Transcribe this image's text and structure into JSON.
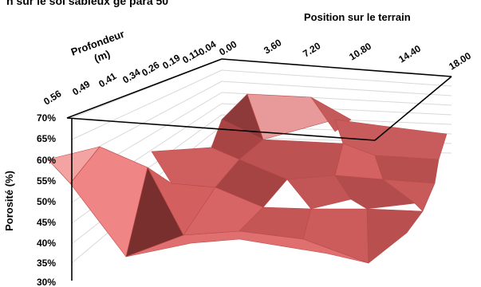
{
  "title_partial": "n sur le sol sableux ge para 50",
  "chart_data": {
    "type": "surface",
    "zlabel": "Porosité (%)",
    "xlabel": "Position sur le terrain",
    "ylabel": "Profondeur\n(m)",
    "z_ticks": [
      "70%",
      "65%",
      "60%",
      "55%",
      "50%",
      "45%",
      "40%",
      "35%",
      "30%"
    ],
    "x_ticks": [
      "0.00",
      "3.60",
      "7.20",
      "10.80",
      "14.40",
      "18.00"
    ],
    "y_ticks": [
      "0.04",
      "0.11",
      "0.19",
      "0.26",
      "0.34",
      "0.41",
      "0.49",
      "0.56"
    ],
    "zlim": [
      30,
      70
    ],
    "surface_color": "#d9534f",
    "grid": true,
    "front_row_values": [
      55,
      64,
      32,
      41,
      42,
      44,
      38,
      36,
      44,
      43,
      36,
      51
    ]
  }
}
